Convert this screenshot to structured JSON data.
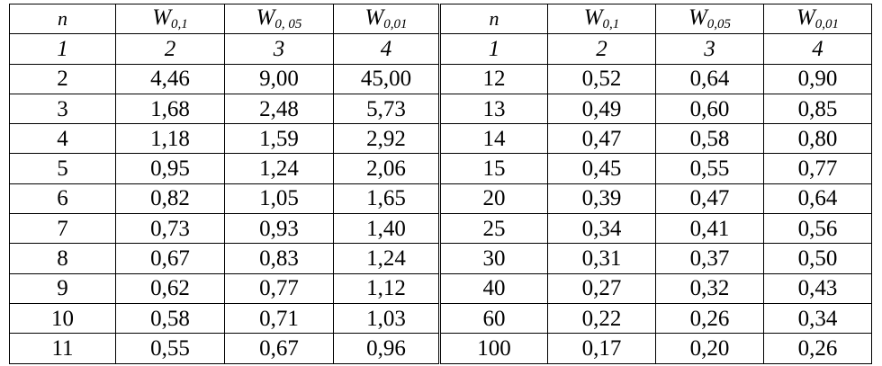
{
  "header": {
    "left": [
      {
        "symbol": "n",
        "sub": ""
      },
      {
        "symbol": "W",
        "sub": "0,1"
      },
      {
        "symbol": "W",
        "sub": "0, 05"
      },
      {
        "symbol": "W",
        "sub": "0,01"
      }
    ],
    "right": [
      {
        "symbol": "n",
        "sub": ""
      },
      {
        "symbol": "W",
        "sub": "0,1"
      },
      {
        "symbol": "W",
        "sub": "0,05"
      },
      {
        "symbol": "W",
        "sub": "0,01"
      }
    ]
  },
  "column_numbers": {
    "left": [
      "1",
      "2",
      "3",
      "4"
    ],
    "right": [
      "1",
      "2",
      "3",
      "4"
    ]
  },
  "rows": [
    {
      "left": [
        "2",
        "4,46",
        "9,00",
        "45,00"
      ],
      "right": [
        "12",
        "0,52",
        "0,64",
        "0,90"
      ]
    },
    {
      "left": [
        "3",
        "1,68",
        "2,48",
        "5,73"
      ],
      "right": [
        "13",
        "0,49",
        "0,60",
        "0,85"
      ]
    },
    {
      "left": [
        "4",
        "1,18",
        "1,59",
        "2,92"
      ],
      "right": [
        "14",
        "0,47",
        "0,58",
        "0,80"
      ]
    },
    {
      "left": [
        "5",
        "0,95",
        "1,24",
        "2,06"
      ],
      "right": [
        "15",
        "0,45",
        "0,55",
        "0,77"
      ]
    },
    {
      "left": [
        "6",
        "0,82",
        "1,05",
        "1,65"
      ],
      "right": [
        "20",
        "0,39",
        "0,47",
        "0,64"
      ]
    },
    {
      "left": [
        "7",
        "0,73",
        "0,93",
        "1,40"
      ],
      "right": [
        "25",
        "0,34",
        "0,41",
        "0,56"
      ]
    },
    {
      "left": [
        "8",
        "0,67",
        "0,83",
        "1,24"
      ],
      "right": [
        "30",
        "0,31",
        "0,37",
        "0,50"
      ]
    },
    {
      "left": [
        "9",
        "0,62",
        "0,77",
        "1,12"
      ],
      "right": [
        "40",
        "0,27",
        "0,32",
        "0,43"
      ]
    },
    {
      "left": [
        "10",
        "0,58",
        "0,71",
        "1,03"
      ],
      "right": [
        "60",
        "0,22",
        "0,26",
        "0,34"
      ]
    },
    {
      "left": [
        "11",
        "0,55",
        "0,67",
        "0,96"
      ],
      "right": [
        "100",
        "0,17",
        "0,20",
        "0,26"
      ]
    }
  ]
}
